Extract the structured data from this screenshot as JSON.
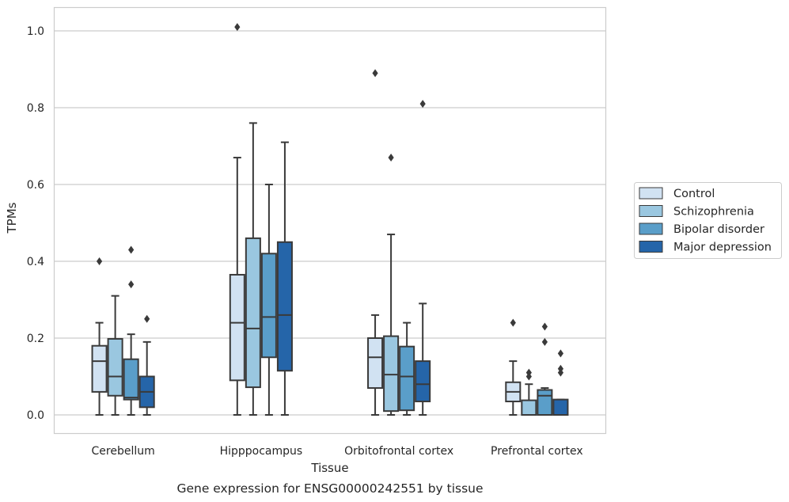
{
  "chart_data": {
    "type": "boxplot",
    "caption": "Gene expression for ENSG00000242551 by tissue",
    "xlabel": "Tissue",
    "ylabel": "TPMs",
    "ylim": [
      -0.05,
      1.06
    ],
    "yticks": [
      0.0,
      0.2,
      0.4,
      0.6,
      0.8,
      1.0
    ],
    "ytick_labels": [
      "0.0",
      "0.2",
      "0.4",
      "0.6",
      "0.8",
      "1.0"
    ],
    "grid": "horizontal",
    "legend_placement": "outside-right",
    "categories": [
      "Cerebellum",
      "Hipppocampus",
      "Orbitofrontal cortex",
      "Prefrontal cortex"
    ],
    "series": [
      {
        "name": "Control",
        "color": "#d1e2f2",
        "boxes": [
          {
            "whislo": 0.0,
            "q1": 0.06,
            "med": 0.14,
            "q3": 0.18,
            "whishi": 0.24,
            "fliers": [
              0.4
            ]
          },
          {
            "whislo": 0.0,
            "q1": 0.09,
            "med": 0.24,
            "q3": 0.365,
            "whishi": 0.67,
            "fliers": [
              1.01
            ]
          },
          {
            "whislo": 0.0,
            "q1": 0.07,
            "med": 0.15,
            "q3": 0.2,
            "whishi": 0.26,
            "fliers": [
              0.89
            ]
          },
          {
            "whislo": 0.0,
            "q1": 0.035,
            "med": 0.06,
            "q3": 0.085,
            "whishi": 0.14,
            "fliers": [
              0.24
            ]
          }
        ]
      },
      {
        "name": "Schizophrenia",
        "color": "#9ac7e0",
        "boxes": [
          {
            "whislo": 0.0,
            "q1": 0.05,
            "med": 0.1,
            "q3": 0.198,
            "whishi": 0.31,
            "fliers": []
          },
          {
            "whislo": 0.0,
            "q1": 0.072,
            "med": 0.225,
            "q3": 0.46,
            "whishi": 0.76,
            "fliers": []
          },
          {
            "whislo": 0.0,
            "q1": 0.01,
            "med": 0.105,
            "q3": 0.205,
            "whishi": 0.47,
            "fliers": [
              0.67
            ]
          },
          {
            "whislo": 0.0,
            "q1": 0.0,
            "med": 0.0,
            "q3": 0.038,
            "whishi": 0.08,
            "fliers": [
              0.1,
              0.11
            ]
          }
        ]
      },
      {
        "name": "Bipolar disorder",
        "color": "#5a9ec9",
        "boxes": [
          {
            "whislo": 0.0,
            "q1": 0.04,
            "med": 0.045,
            "q3": 0.145,
            "whishi": 0.21,
            "fliers": [
              0.34,
              0.43
            ]
          },
          {
            "whislo": 0.0,
            "q1": 0.15,
            "med": 0.255,
            "q3": 0.42,
            "whishi": 0.6,
            "fliers": []
          },
          {
            "whislo": 0.0,
            "q1": 0.012,
            "med": 0.1,
            "q3": 0.178,
            "whishi": 0.24,
            "fliers": []
          },
          {
            "whislo": 0.0,
            "q1": 0.0,
            "med": 0.05,
            "q3": 0.065,
            "whishi": 0.07,
            "fliers": [
              0.19,
              0.23
            ]
          }
        ]
      },
      {
        "name": "Major depression",
        "color": "#2565a9",
        "boxes": [
          {
            "whislo": 0.0,
            "q1": 0.02,
            "med": 0.06,
            "q3": 0.1,
            "whishi": 0.19,
            "fliers": [
              0.25
            ]
          },
          {
            "whislo": 0.0,
            "q1": 0.115,
            "med": 0.26,
            "q3": 0.45,
            "whishi": 0.71,
            "fliers": []
          },
          {
            "whislo": 0.0,
            "q1": 0.035,
            "med": 0.08,
            "q3": 0.14,
            "whishi": 0.29,
            "fliers": [
              0.81
            ]
          },
          {
            "whislo": 0.0,
            "q1": 0.0,
            "med": 0.0,
            "q3": 0.04,
            "whishi": 0.04,
            "fliers": [
              0.11,
              0.12,
              0.16
            ]
          }
        ]
      }
    ]
  }
}
